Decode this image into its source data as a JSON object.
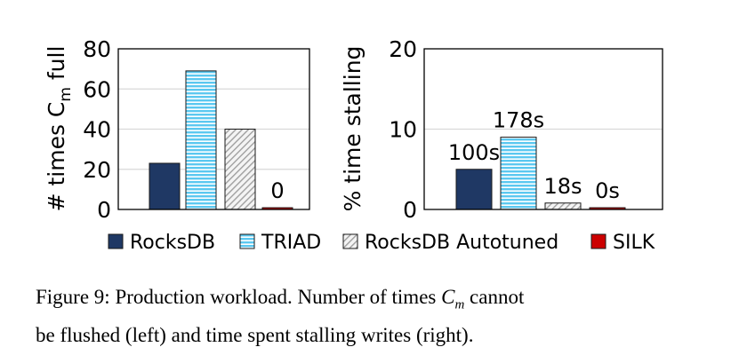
{
  "chart_data": [
    {
      "type": "bar",
      "ylabel": "# times C",
      "ylabel_subscript": "m",
      "ylabel_suffix": " full",
      "ylim": [
        0,
        80
      ],
      "yticks": [
        "0",
        "20",
        "40",
        "60",
        "80"
      ],
      "grid": true,
      "series": [
        {
          "name": "RocksDB",
          "values": [
            23
          ]
        },
        {
          "name": "TRIAD",
          "values": [
            69
          ]
        },
        {
          "name": "RocksDB Autotuned",
          "values": [
            40
          ]
        },
        {
          "name": "SILK",
          "values": [
            0
          ]
        }
      ],
      "annotations": [
        {
          "series": "SILK",
          "text": "0"
        }
      ]
    },
    {
      "type": "bar",
      "ylabel": "% time stalling",
      "ylim": [
        0,
        20
      ],
      "yticks": [
        "0",
        "10",
        "20"
      ],
      "grid": true,
      "series": [
        {
          "name": "RocksDB",
          "values": [
            5
          ]
        },
        {
          "name": "TRIAD",
          "values": [
            9
          ]
        },
        {
          "name": "RocksDB Autotuned",
          "values": [
            0.8
          ]
        },
        {
          "name": "SILK",
          "values": [
            0.05
          ]
        }
      ],
      "annotations": [
        {
          "series": "RocksDB",
          "text": "100s"
        },
        {
          "series": "TRIAD",
          "text": "178s"
        },
        {
          "series": "RocksDB Autotuned",
          "text": "18s"
        },
        {
          "series": "SILK",
          "text": "0s"
        }
      ]
    }
  ],
  "legend": {
    "placement": "bottom",
    "items": [
      {
        "label": "RocksDB",
        "color": "#1f3864",
        "pattern": "solid"
      },
      {
        "label": "TRIAD",
        "color": "#5bc8f0",
        "pattern": "horizontal-stripes"
      },
      {
        "label": "RocksDB Autotuned",
        "color": "#f2f2f2",
        "pattern": "diagonal-hatch"
      },
      {
        "label": "SILK",
        "color": "#cc0000",
        "pattern": "solid"
      }
    ]
  },
  "caption": {
    "line1_a": "Figure 9: Production workload. Number of times ",
    "line1_sym": "C",
    "line1_sub": "m",
    "line1_b": " cannot",
    "line2": "be flushed (left) and time spent stalling writes (right)."
  }
}
